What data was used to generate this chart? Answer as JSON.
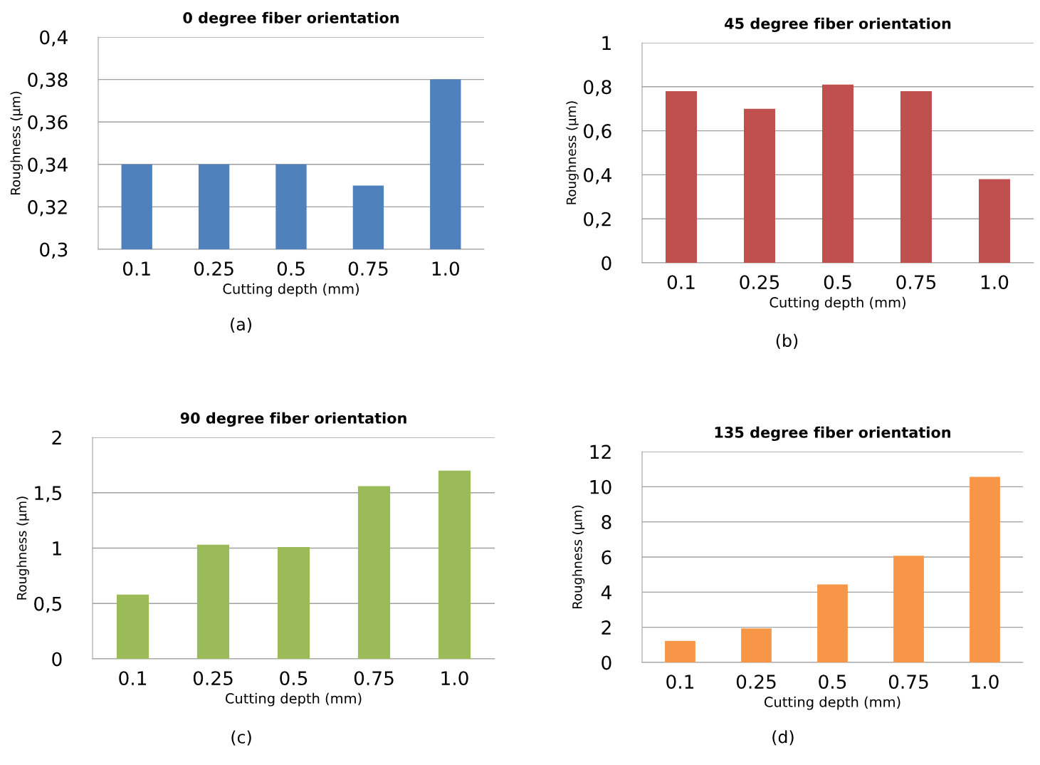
{
  "chart_data": [
    {
      "type": "bar",
      "title": "0 degree fiber orientation",
      "xlabel": "Cutting depth (mm)",
      "ylabel": "Roughness (µm)",
      "categories": [
        "0.1",
        "0.25",
        "0.5",
        "0.75",
        "1.0"
      ],
      "values": [
        0.34,
        0.34,
        0.34,
        0.33,
        0.38
      ],
      "color": "#4f81bd",
      "ylim": [
        0.3,
        0.4
      ],
      "yticks": [
        {
          "value": 0.3,
          "label": "0,3"
        },
        {
          "value": 0.32,
          "label": "0,32"
        },
        {
          "value": 0.34,
          "label": "0,34"
        },
        {
          "value": 0.36,
          "label": "0,36"
        },
        {
          "value": 0.38,
          "label": "0,38"
        },
        {
          "value": 0.4,
          "label": "0,4"
        }
      ],
      "grid": "y",
      "annotations": [
        "(a)"
      ]
    },
    {
      "type": "bar",
      "title": "45 degree fiber orientation",
      "xlabel": "Cutting depth (mm)",
      "ylabel": "Roughness (µm)",
      "categories": [
        "0.1",
        "0.25",
        "0.5",
        "0.75",
        "1.0"
      ],
      "values": [
        0.78,
        0.7,
        0.81,
        0.78,
        0.38
      ],
      "color": "#c0504d",
      "ylim": [
        0,
        1
      ],
      "yticks": [
        0,
        {
          "value": 0.2,
          "label": "0,2"
        },
        {
          "value": 0.4,
          "label": "0,4"
        },
        {
          "value": 0.6,
          "label": "0,6"
        },
        {
          "value": 0.8,
          "label": "0,8"
        },
        1
      ],
      "grid": "y",
      "annotations": [
        "(b)"
      ]
    },
    {
      "type": "bar",
      "title": "90 degree fiber orientation",
      "xlabel": "Cutting depth (mm)",
      "ylabel": "Roughness (µm)",
      "categories": [
        "0.1",
        "0.25",
        "0.5",
        "0.75",
        "1.0"
      ],
      "values": [
        0.58,
        1.03,
        1.01,
        1.56,
        1.7
      ],
      "color": "#9bbb59",
      "ylim": [
        0,
        2
      ],
      "yticks": [
        0,
        {
          "value": 0.5,
          "label": "0,5"
        },
        1,
        {
          "value": 1.5,
          "label": "1,5"
        },
        2
      ],
      "grid": "y",
      "annotations": [
        "(c)"
      ]
    },
    {
      "type": "bar",
      "title": "135 degree fiber orientation",
      "xlabel": "Cutting depth (mm)",
      "ylabel": "Roughness (µm)",
      "categories": [
        "0.1",
        "0.25",
        "0.5",
        "0.75",
        "1.0"
      ],
      "values": [
        1.23,
        1.94,
        4.44,
        6.07,
        10.56
      ],
      "color": "#f79646",
      "ylim": [
        0,
        12
      ],
      "yticks": [
        0,
        2,
        4,
        6,
        8,
        10,
        12
      ],
      "grid": "y",
      "annotations": [
        "(d)"
      ]
    }
  ]
}
